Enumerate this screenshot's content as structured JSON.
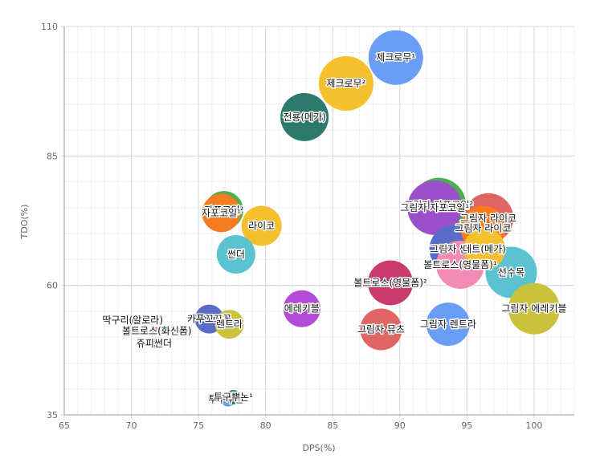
{
  "chart_data": {
    "type": "scatter",
    "xlabel": "DPS(%)",
    "ylabel": "TDO(%)",
    "xlim": [
      65,
      103
    ],
    "ylim": [
      35,
      110
    ],
    "x_ticks": [
      65,
      70,
      75,
      80,
      85,
      90,
      95,
      100
    ],
    "y_ticks": [
      35,
      60,
      85,
      110
    ],
    "grid": true,
    "series": [
      {
        "label": "제크로무¹",
        "x": 89.7,
        "y": 104.0,
        "size": 3.4,
        "color": "#6a9df5"
      },
      {
        "label": "제크로무²",
        "x": 86.0,
        "y": 99.0,
        "size": 3.4,
        "color": "#f5c02e"
      },
      {
        "label": "전룡(메가)",
        "x": 82.9,
        "y": 92.5,
        "size": 3.0,
        "color": "#2b7a6b"
      },
      {
        "label": "자포코일²",
        "x": 76.9,
        "y": 74.5,
        "size": 2.4,
        "color": "#4caf50"
      },
      {
        "label": "자포코일¹",
        "x": 76.7,
        "y": 74.0,
        "size": 2.4,
        "color": "#f57c1f"
      },
      {
        "label": "라이코",
        "x": 79.7,
        "y": 71.5,
        "size": 2.5,
        "color": "#f5c02e"
      },
      {
        "label": "썬더",
        "x": 77.8,
        "y": 66.0,
        "size": 2.4,
        "color": "#5bc3cf"
      },
      {
        "label": "에레키블",
        "x": 82.7,
        "y": 55.5,
        "size": 2.3,
        "color": "#b44bd6"
      },
      {
        "label": "카푸꼬꼬꼭",
        "x": 75.8,
        "y": 53.5,
        "size": 1.8,
        "color": "#5a6cc8"
      },
      {
        "label": "렌트라",
        "x": 77.3,
        "y": 52.5,
        "size": 1.8,
        "color": "#c9c23a"
      },
      {
        "label": "딱구리(알로라)",
        "x": 70.1,
        "y": 53.3,
        "size": 0.5,
        "color": "#e06666"
      },
      {
        "label": "볼트로스(화신폼)",
        "x": 71.9,
        "y": 51.2,
        "size": 0.5,
        "color": "#f28cb4"
      },
      {
        "label": "쥬피썬더",
        "x": 71.7,
        "y": 48.8,
        "size": 0.5,
        "color": "#e06666"
      },
      {
        "label": "투구뿌논²",
        "x": 77.2,
        "y": 38.0,
        "size": 0.9,
        "color": "#6a9df5"
      },
      {
        "label": "투구뿌논¹",
        "x": 77.6,
        "y": 38.4,
        "size": 0.9,
        "color": "#2b7a6b"
      },
      {
        "label": "그림자 자포코일²",
        "x": 92.9,
        "y": 75.5,
        "size": 3.4,
        "color": "#4caf50"
      },
      {
        "label": "그림자 자포코일¹",
        "x": 92.6,
        "y": 75.0,
        "size": 3.4,
        "color": "#9b4fc8"
      },
      {
        "label": "그림자 라이코",
        "x": 96.6,
        "y": 73.0,
        "size": 3.1,
        "color": "#e06666"
      },
      {
        "label": "그림자 라이코",
        "x": 96.2,
        "y": 71.0,
        "size": 2.8,
        "color": "#ff7a1a"
      },
      {
        "label": "그림자 썬더",
        "x": 94.0,
        "y": 67.0,
        "size": 3.0,
        "color": "#5a6cc8"
      },
      {
        "label": "데트(메가)",
        "x": 96.3,
        "y": 67.0,
        "size": 2.6,
        "color": "#f5c02e"
      },
      {
        "label": "볼트로스(영물폼)¹",
        "x": 94.5,
        "y": 64.0,
        "size": 3.0,
        "color": "#f28cb4"
      },
      {
        "label": "선수목",
        "x": 98.3,
        "y": 62.5,
        "size": 3.2,
        "color": "#5bc3cf"
      },
      {
        "label": "볼트로스(영물폼)²",
        "x": 89.3,
        "y": 60.5,
        "size": 2.8,
        "color": "#c93a6e"
      },
      {
        "label": "그림자 에레키블",
        "x": 100.0,
        "y": 55.5,
        "size": 3.2,
        "color": "#c9c23a"
      },
      {
        "label": "그림자 렌트라",
        "x": 93.6,
        "y": 52.5,
        "size": 2.7,
        "color": "#6a9df5"
      },
      {
        "label": "그림자 뮤츠",
        "x": 88.6,
        "y": 51.5,
        "size": 2.6,
        "color": "#e06666"
      }
    ]
  }
}
